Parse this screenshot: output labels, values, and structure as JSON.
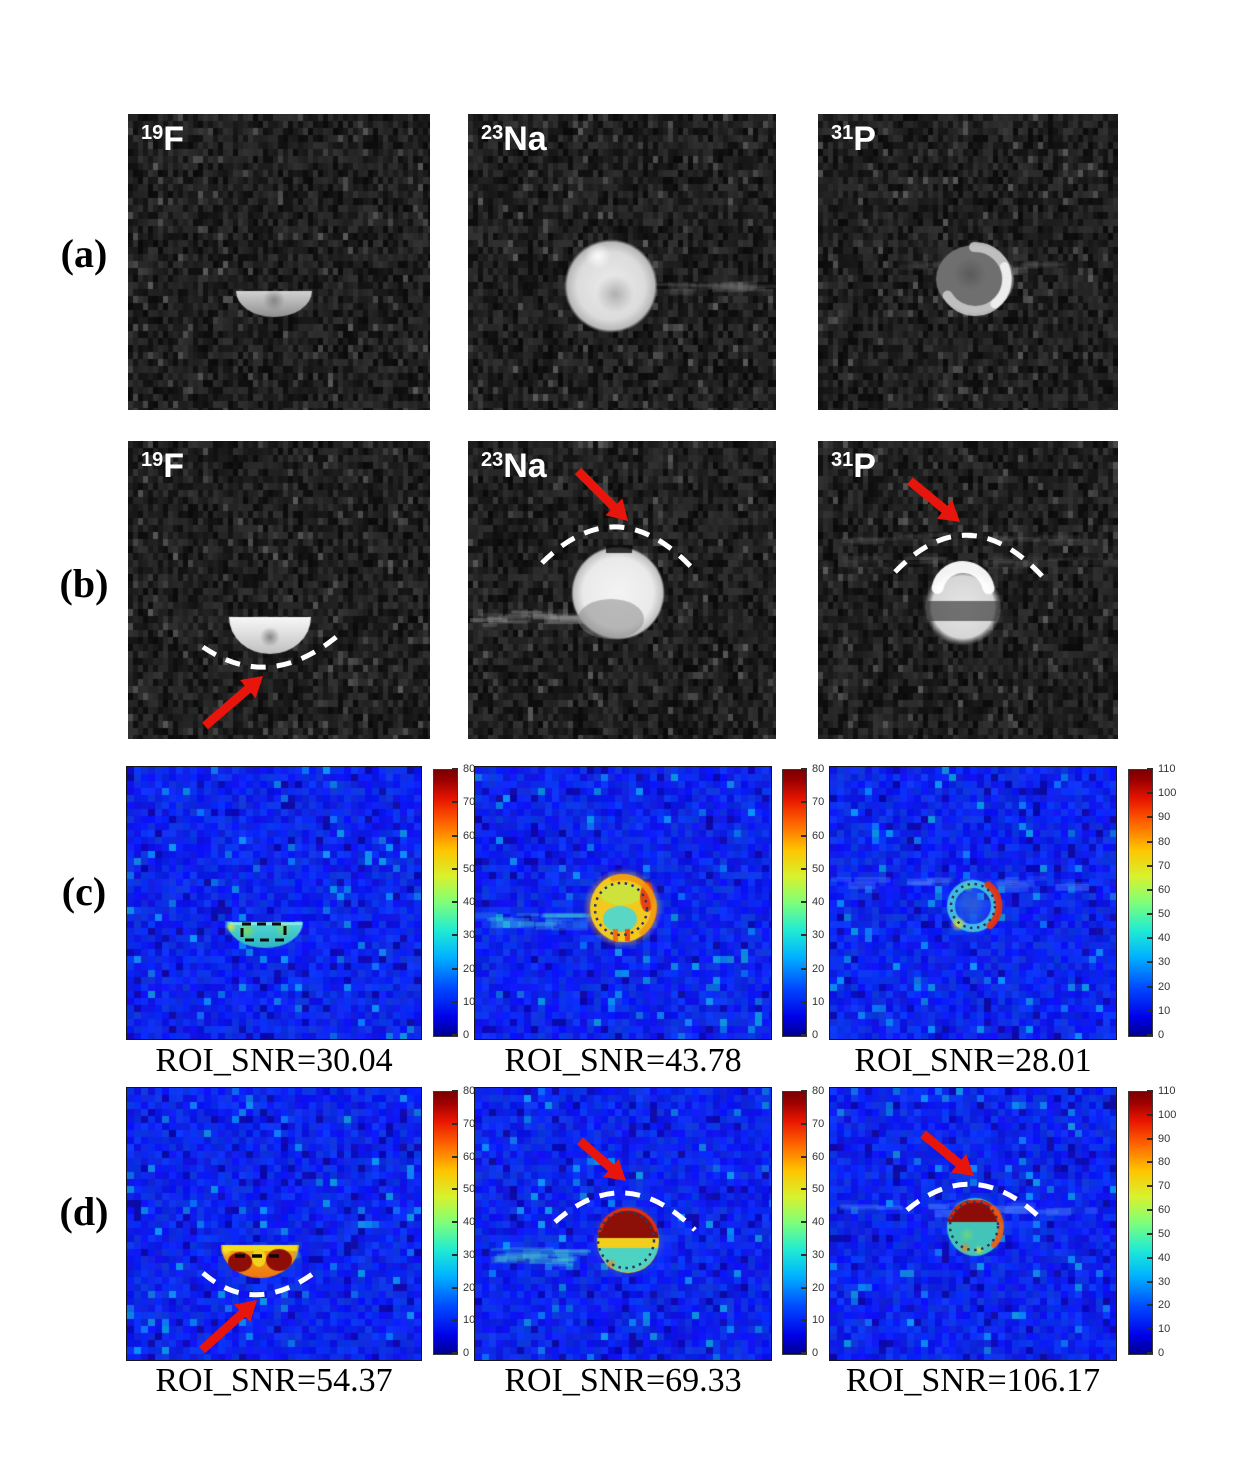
{
  "figure": {
    "colors": {
      "annotation_arrow": "#e8150d",
      "dashed_arc_annotation": "#ffffff",
      "roi_outline": "#2f3a64",
      "colormap_style": "jet",
      "background": "#ffffff",
      "snr_text": "#000000"
    },
    "rows": [
      {
        "label": "(a)",
        "type": "grayscale-mri",
        "panels": [
          {
            "isotope": {
              "mass": "19",
              "symbol": "F"
            },
            "feature": "crescent-phantom"
          },
          {
            "isotope": {
              "mass": "23",
              "symbol": "Na"
            },
            "feature": "disc-phantom"
          },
          {
            "isotope": {
              "mass": "31",
              "symbol": "P"
            },
            "feature": "ring-phantom"
          }
        ]
      },
      {
        "label": "(b)",
        "type": "grayscale-mri-annotated",
        "panels": [
          {
            "isotope": {
              "mass": "19",
              "symbol": "F"
            },
            "feature": "crescent-phantom",
            "annotations": [
              "dashed-arc",
              "red-arrow"
            ]
          },
          {
            "isotope": {
              "mass": "23",
              "symbol": "Na"
            },
            "feature": "disc-phantom",
            "annotations": [
              "dashed-arc",
              "red-arrow"
            ]
          },
          {
            "isotope": {
              "mass": "31",
              "symbol": "P"
            },
            "feature": "disc-phantom",
            "annotations": [
              "dashed-arc",
              "red-arrow"
            ]
          }
        ]
      },
      {
        "label": "(c)",
        "type": "snr-colormap",
        "panels": [
          {
            "snr_label": "ROI_SNR=30.04",
            "snr_value": 30.04,
            "roi_marker": "dashed-rectangle",
            "colorbar": {
              "min": 0,
              "max": 80,
              "ticks": [
                0,
                10,
                20,
                30,
                40,
                50,
                60,
                70,
                80
              ]
            }
          },
          {
            "snr_label": "ROI_SNR=43.78",
            "snr_value": 43.78,
            "roi_marker": "dotted-circle",
            "colorbar": {
              "min": 0,
              "max": 80,
              "ticks": [
                0,
                10,
                20,
                30,
                40,
                50,
                60,
                70,
                80
              ]
            }
          },
          {
            "snr_label": "ROI_SNR=28.01",
            "snr_value": 28.01,
            "roi_marker": "dotted-circle",
            "colorbar": {
              "min": 0,
              "max": 110,
              "ticks": [
                0,
                10,
                20,
                30,
                40,
                50,
                60,
                70,
                80,
                90,
                100,
                110
              ]
            }
          }
        ]
      },
      {
        "label": "(d)",
        "type": "snr-colormap-annotated",
        "panels": [
          {
            "snr_label": "ROI_SNR=54.37",
            "snr_value": 54.37,
            "roi_marker": "dashed-line",
            "annotations": [
              "dashed-arc",
              "red-arrow"
            ],
            "colorbar": {
              "min": 0,
              "max": 80,
              "ticks": [
                0,
                10,
                20,
                30,
                40,
                50,
                60,
                70,
                80
              ]
            }
          },
          {
            "snr_label": "ROI_SNR=69.33",
            "snr_value": 69.33,
            "roi_marker": "dotted-circle",
            "annotations": [
              "dashed-arc",
              "red-arrow"
            ],
            "colorbar": {
              "min": 0,
              "max": 80,
              "ticks": [
                0,
                10,
                20,
                30,
                40,
                50,
                60,
                70,
                80
              ]
            }
          },
          {
            "snr_label": "ROI_SNR=106.17",
            "snr_value": 106.17,
            "roi_marker": "dotted-circle",
            "annotations": [
              "dashed-arc",
              "red-arrow"
            ],
            "colorbar": {
              "min": 0,
              "max": 110,
              "ticks": [
                0,
                10,
                20,
                30,
                40,
                50,
                60,
                70,
                80,
                90,
                100,
                110
              ]
            }
          }
        ]
      }
    ]
  }
}
